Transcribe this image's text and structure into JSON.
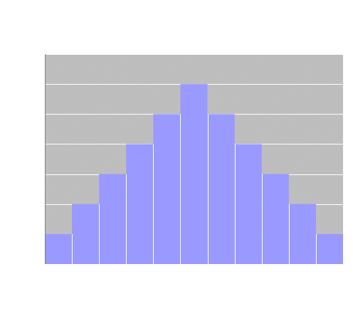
{
  "chart_data": {
    "type": "bar",
    "categories": [
      "",
      "",
      "",
      "",
      "",
      "",
      "",
      "",
      "",
      "",
      ""
    ],
    "values": [
      1,
      2,
      3,
      4,
      5,
      6,
      5,
      4,
      3,
      2,
      1
    ],
    "title": "",
    "xlabel": "",
    "ylabel": "",
    "ylim": [
      0,
      7
    ],
    "grid": true,
    "legend": "none"
  },
  "colors": {
    "plot_background": "#c0c0c0",
    "bar_fill": "#9999ff",
    "gridline": "#ffffff",
    "bar_divider": "#ffffff",
    "axis_line": "#808080",
    "page_background": "#ffffff"
  }
}
